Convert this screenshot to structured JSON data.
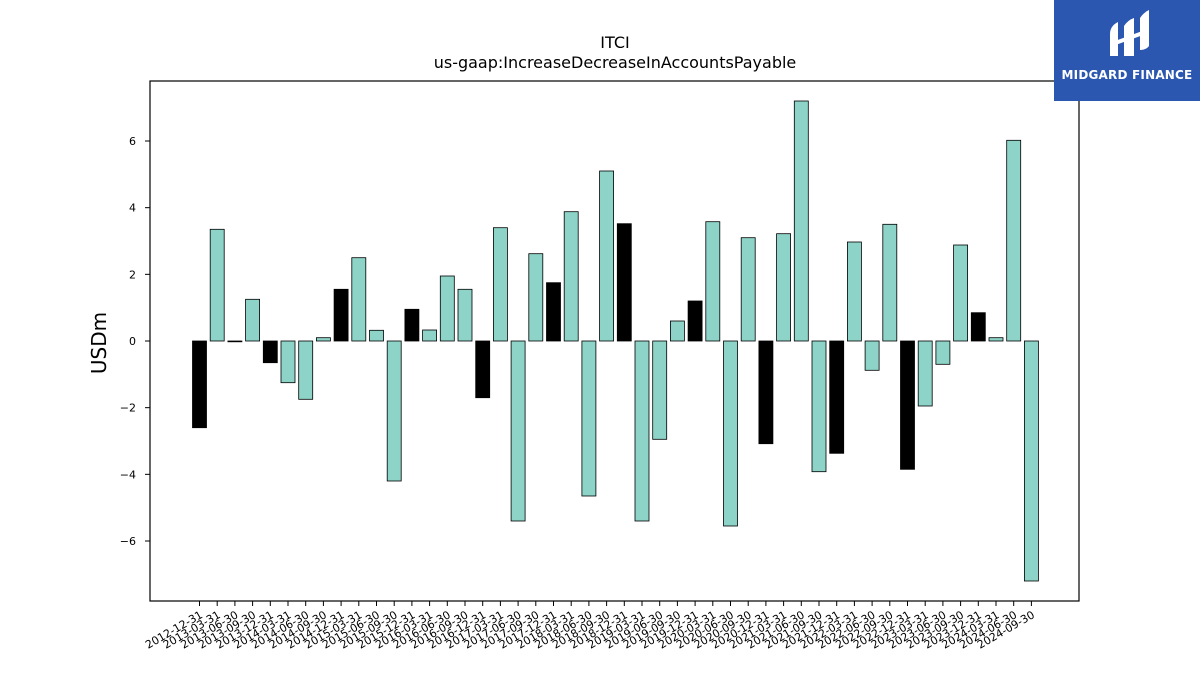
{
  "brand": {
    "name": "MIDGARD FINANCE",
    "background": "#2b57b0"
  },
  "chart_data": {
    "type": "bar",
    "title": "ITCI",
    "subtitle": "us-gaap:IncreaseDecreaseInAccountsPayable",
    "xlabel": "",
    "ylabel": "USDm",
    "ylim": [
      -7.8,
      7.8
    ],
    "yticks": [
      -6,
      -4,
      -2,
      0,
      2,
      4,
      6
    ],
    "grid": false,
    "colors": {
      "positive_series": "#8dd3c7",
      "highlight": "#000000",
      "edge": "#000000"
    },
    "categories": [
      "2012-12-31",
      "2013-03-31",
      "2013-06-30",
      "2013-09-30",
      "2013-12-31",
      "2014-03-31",
      "2014-06-30",
      "2014-09-30",
      "2014-12-31",
      "2015-03-31",
      "2015-06-30",
      "2015-09-30",
      "2015-12-31",
      "2016-03-31",
      "2016-06-30",
      "2016-09-30",
      "2016-12-31",
      "2017-03-31",
      "2017-06-30",
      "2017-09-30",
      "2017-12-31",
      "2018-03-31",
      "2018-06-30",
      "2018-09-30",
      "2018-12-31",
      "2019-03-31",
      "2019-06-30",
      "2019-09-30",
      "2019-12-31",
      "2020-03-31",
      "2020-06-30",
      "2020-09-30",
      "2020-12-31",
      "2021-03-31",
      "2021-06-30",
      "2021-09-30",
      "2021-12-31",
      "2022-03-31",
      "2022-06-30",
      "2022-09-30",
      "2022-12-31",
      "2023-03-31",
      "2023-06-30",
      "2023-09-30",
      "2023-12-31",
      "2024-03-31",
      "2024-06-30",
      "2024-09-30"
    ],
    "values": [
      -2.6,
      3.35,
      0.0,
      1.25,
      -0.65,
      -1.25,
      -1.75,
      0.1,
      1.55,
      2.5,
      0.32,
      -4.2,
      0.95,
      0.33,
      1.95,
      1.55,
      -1.7,
      3.4,
      -5.4,
      2.62,
      1.75,
      3.88,
      -4.65,
      5.1,
      3.52,
      -5.4,
      -2.95,
      0.6,
      1.2,
      3.58,
      -5.55,
      3.1,
      -3.08,
      3.22,
      7.2,
      -3.92,
      -3.37,
      2.97,
      -0.88,
      3.5,
      -3.85,
      -1.95,
      -0.7,
      2.88,
      0.85,
      0.1,
      6.02,
      -7.2
    ],
    "highlight": [
      true,
      false,
      false,
      false,
      true,
      false,
      false,
      false,
      true,
      false,
      false,
      false,
      true,
      false,
      false,
      false,
      true,
      false,
      false,
      false,
      true,
      false,
      false,
      false,
      true,
      false,
      false,
      false,
      true,
      false,
      false,
      false,
      true,
      false,
      false,
      false,
      true,
      false,
      false,
      false,
      true,
      false,
      false,
      false,
      true,
      false,
      false,
      false
    ]
  }
}
